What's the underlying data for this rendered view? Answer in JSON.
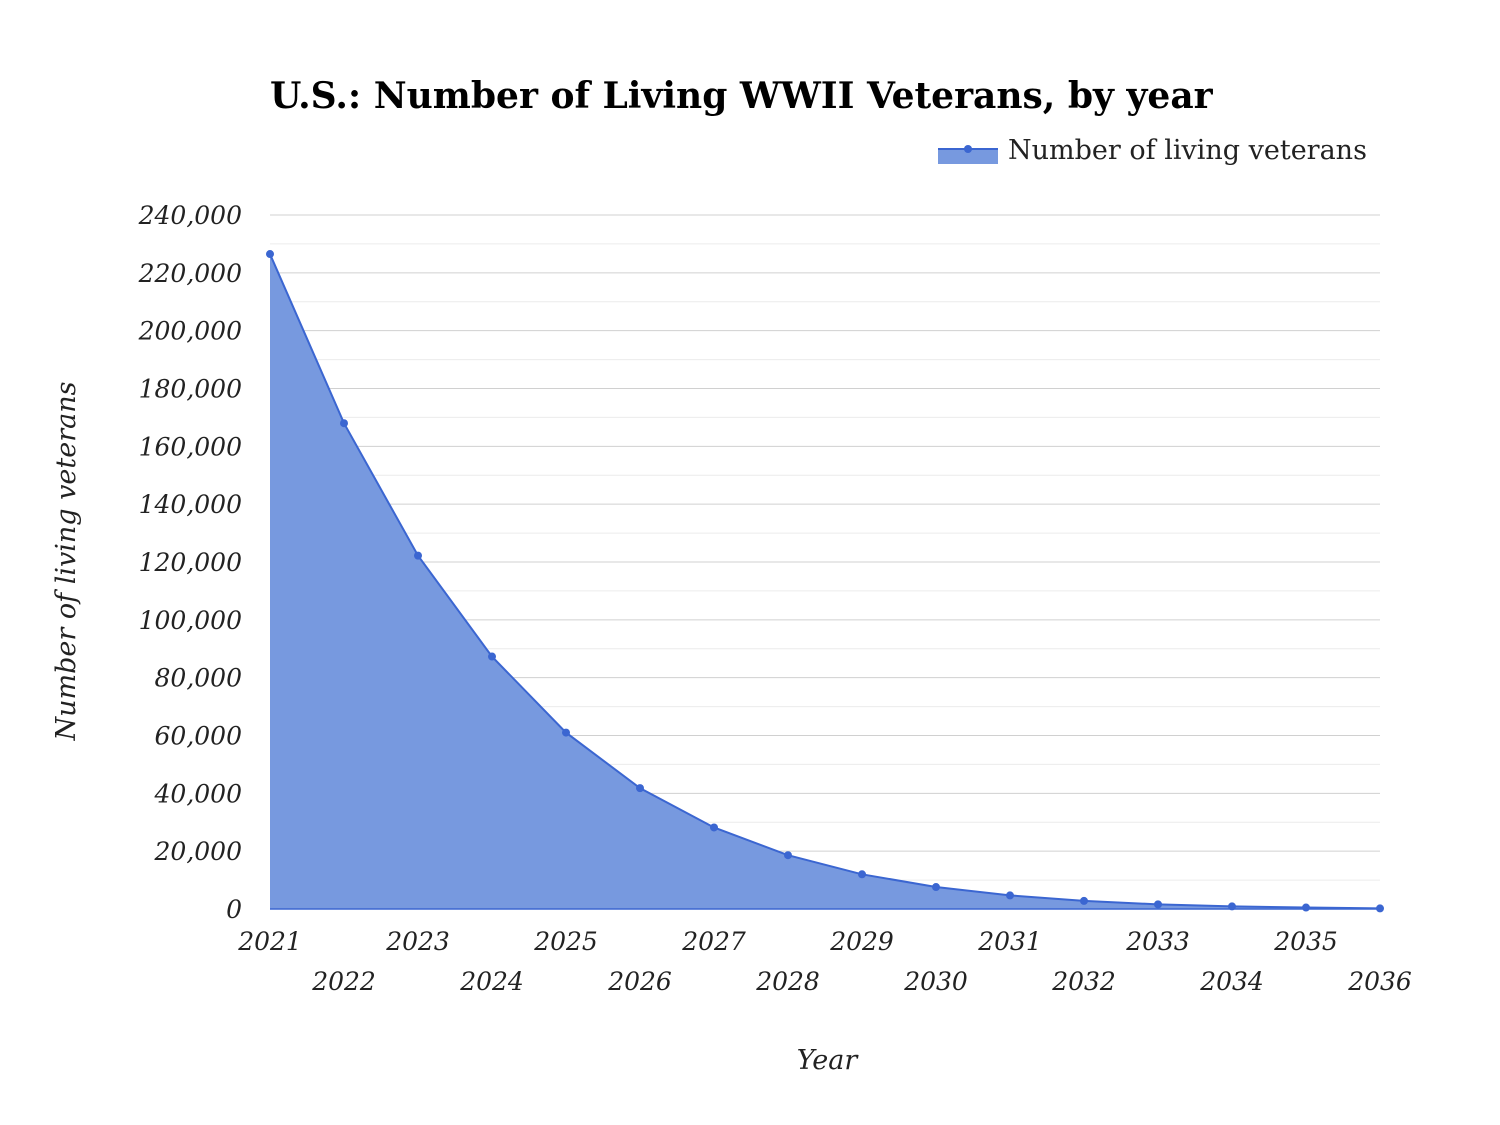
{
  "chart_data": {
    "type": "area",
    "title": "U.S.: Number of Living WWII Veterans, by year",
    "xlabel": "Year",
    "ylabel": "Number of living veterans",
    "legend_position": "top-right",
    "grid": true,
    "ylim": [
      0,
      240000
    ],
    "y_ticks": [
      "0",
      "20,000",
      "40,000",
      "60,000",
      "80,000",
      "100,000",
      "120,000",
      "140,000",
      "160,000",
      "180,000",
      "200,000",
      "220,000",
      "240,000"
    ],
    "categories": [
      "2021",
      "2022",
      "2023",
      "2024",
      "2025",
      "2026",
      "2027",
      "2028",
      "2029",
      "2030",
      "2031",
      "2032",
      "2033",
      "2034",
      "2035",
      "2036"
    ],
    "series": [
      {
        "name": "Number of living veterans",
        "values": [
          226500,
          168000,
          122200,
          87300,
          61000,
          41800,
          28200,
          18600,
          12000,
          7600,
          4700,
          2800,
          1600,
          900,
          500,
          200
        ]
      }
    ],
    "colors": {
      "line": "#3b66d1",
      "fill": "#7799df",
      "grid": "#d0d0d0",
      "minor_grid": "#ececec"
    }
  }
}
